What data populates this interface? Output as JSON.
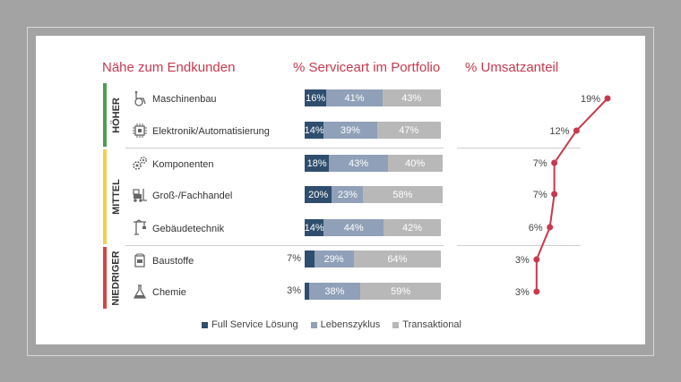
{
  "headings": {
    "proximity": "Nähe zum Endkunden",
    "service_mix": "% Serviceart im Portfolio",
    "revenue_share": "% Umsatzanteil"
  },
  "bands": [
    {
      "label": "HÖHER",
      "color": "#4a9e52"
    },
    {
      "label": "MITTEL",
      "color": "#f2cf4a"
    },
    {
      "label": "NIEDRIGER",
      "color": "#d9433f"
    }
  ],
  "industries": [
    {
      "name": "Maschinenbau",
      "icon": "wheelchair-machine-icon"
    },
    {
      "name": "Elektronik/Automatisierung",
      "icon": "chip-icon"
    },
    {
      "name": "Komponenten",
      "icon": "gears-icon"
    },
    {
      "name": "Groß-/Fachhandel",
      "icon": "forklift-icon"
    },
    {
      "name": "Gebäudetechnik",
      "icon": "crane-icon"
    },
    {
      "name": "Baustoffe",
      "icon": "sack-icon"
    },
    {
      "name": "Chemie",
      "icon": "flask-icon"
    }
  ],
  "colors": {
    "full_service": "#2f4e6e",
    "lifecycle": "#8fa0b8",
    "transactional": "#b8b8b8",
    "accent": "#c8394d"
  },
  "chart_data": [
    {
      "type": "bar",
      "stacked": true,
      "orientation": "horizontal",
      "title": "% Serviceart im Portfolio",
      "categories": [
        "Maschinenbau",
        "Elektronik/Automatisierung",
        "Komponenten",
        "Groß-/Fachhandel",
        "Gebäudetechnik",
        "Baustoffe",
        "Chemie"
      ],
      "series": [
        {
          "name": "Full Service Lösung",
          "values": [
            16,
            14,
            18,
            20,
            14,
            7,
            3
          ],
          "labels": [
            "16%",
            "14%",
            "18%",
            "20%",
            "14%",
            "7%",
            "3%"
          ]
        },
        {
          "name": "Lebenszyklus",
          "values": [
            41,
            39,
            43,
            23,
            44,
            29,
            38
          ],
          "labels": [
            "41%",
            "39%",
            "43%",
            "23%",
            "44%",
            "29%",
            "38%"
          ]
        },
        {
          "name": "Transaktional",
          "values": [
            43,
            47,
            40,
            58,
            42,
            64,
            59
          ],
          "labels": [
            "43%",
            "47%",
            "40%",
            "58%",
            "42%",
            "64%",
            "59%"
          ]
        }
      ],
      "legend": [
        "Full Service Lösung",
        "Lebenszyklus",
        "Transaktional"
      ]
    },
    {
      "type": "line",
      "title": "% Umsatzanteil",
      "categories": [
        "Maschinenbau",
        "Elektronik/Automatisierung",
        "Komponenten",
        "Groß-/Fachhandel",
        "Gebäudetechnik",
        "Baustoffe",
        "Chemie"
      ],
      "values": [
        19,
        12,
        7,
        7,
        6,
        3,
        3
      ],
      "labels": [
        "19%",
        "12%",
        "7%",
        "7%",
        "6%",
        "3%",
        "3%"
      ]
    }
  ]
}
